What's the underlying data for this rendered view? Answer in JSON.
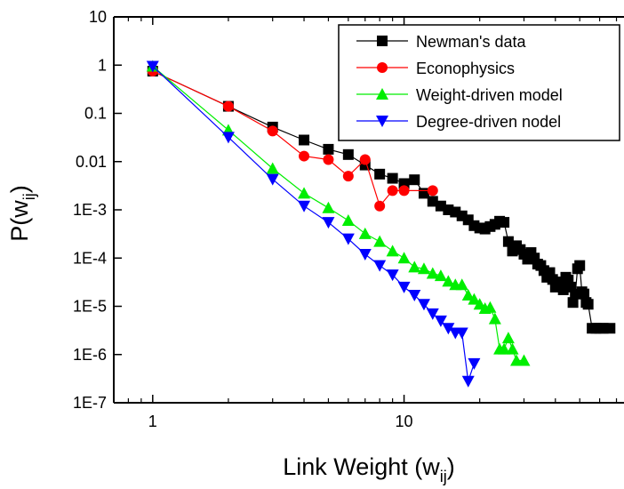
{
  "chart_data": {
    "type": "scatter",
    "x_scale": "log",
    "y_scale": "log",
    "xlim": [
      0.7,
      75
    ],
    "ylim": [
      1e-07,
      10
    ],
    "x_ticks": [
      {
        "value": 1,
        "label": "1"
      },
      {
        "value": 10,
        "label": "10"
      }
    ],
    "y_ticks": [
      {
        "value": 10,
        "label": "10"
      },
      {
        "value": 1,
        "label": "1"
      },
      {
        "value": 0.1,
        "label": "0.1"
      },
      {
        "value": 0.01,
        "label": "0.01"
      },
      {
        "value": 0.001,
        "label": "1E-3"
      },
      {
        "value": 0.0001,
        "label": "1E-4"
      },
      {
        "value": 1e-05,
        "label": "1E-5"
      },
      {
        "value": 1e-06,
        "label": "1E-6"
      },
      {
        "value": 1e-07,
        "label": "1E-7"
      }
    ],
    "xlabel": {
      "main": "Link Weight (w",
      "sub": "ij",
      "close": ")"
    },
    "ylabel": {
      "main": "P(w",
      "sub": "ij",
      "close": ")"
    },
    "legend_position": "top-right",
    "series": [
      {
        "name": "Newman's data",
        "color": "#000000",
        "marker": "square",
        "points": [
          [
            1,
            0.75
          ],
          [
            2,
            0.14
          ],
          [
            3,
            0.052
          ],
          [
            4,
            0.028
          ],
          [
            5,
            0.018
          ],
          [
            6,
            0.014
          ],
          [
            7,
            0.0085
          ],
          [
            8,
            0.0055
          ],
          [
            9,
            0.0045
          ],
          [
            10,
            0.0035
          ],
          [
            11,
            0.0042
          ],
          [
            12,
            0.0022
          ],
          [
            13,
            0.0015
          ],
          [
            14,
            0.0012
          ],
          [
            15,
            0.001
          ],
          [
            16,
            0.0009
          ],
          [
            17,
            0.00075
          ],
          [
            18,
            0.00062
          ],
          [
            19,
            0.00047
          ],
          [
            20,
            0.00042
          ],
          [
            21,
            0.0004
          ],
          [
            22,
            0.00045
          ],
          [
            23,
            0.0005
          ],
          [
            24,
            0.00058
          ],
          [
            25,
            0.00055
          ],
          [
            26,
            0.00022
          ],
          [
            27,
            0.00014
          ],
          [
            28,
            0.00018
          ],
          [
            29,
            0.00015
          ],
          [
            30,
            0.00012
          ],
          [
            31,
            9.5e-05
          ],
          [
            32,
            0.00013
          ],
          [
            33,
            0.0001
          ],
          [
            34,
            7.5e-05
          ],
          [
            35,
            7e-05
          ],
          [
            36,
            5.5e-05
          ],
          [
            37,
            4e-05
          ],
          [
            38,
            5e-05
          ],
          [
            39,
            3.6e-05
          ],
          [
            40,
            2.5e-05
          ],
          [
            41,
            3e-05
          ],
          [
            42,
            3.2e-05
          ],
          [
            43,
            2.2e-05
          ],
          [
            44,
            4e-05
          ],
          [
            45,
            3.5e-05
          ],
          [
            46,
            2.5e-05
          ],
          [
            47,
            1.2e-05
          ],
          [
            48,
            1.8e-05
          ],
          [
            49,
            6e-05
          ],
          [
            50,
            7e-05
          ],
          [
            51,
            2e-05
          ],
          [
            52,
            1.8e-05
          ],
          [
            53,
            1.2e-05
          ],
          [
            54,
            1.1e-05
          ],
          [
            56,
            3.5e-06
          ],
          [
            58,
            3.5e-06
          ],
          [
            60,
            3.5e-06
          ],
          [
            62,
            3.5e-06
          ],
          [
            66,
            3.5e-06
          ]
        ]
      },
      {
        "name": "Econophysics",
        "color": "#ff0000",
        "marker": "circle",
        "points": [
          [
            1,
            0.75
          ],
          [
            2,
            0.14
          ],
          [
            3,
            0.043
          ],
          [
            4,
            0.013
          ],
          [
            5,
            0.011
          ],
          [
            6,
            0.005
          ],
          [
            7,
            0.011
          ],
          [
            8,
            0.0012
          ],
          [
            9,
            0.0025
          ],
          [
            10,
            0.0025
          ],
          [
            13,
            0.0025
          ]
        ]
      },
      {
        "name": "Weight-driven model",
        "color": "#00ee00",
        "marker": "triangle-up",
        "points": [
          [
            1,
            0.95
          ],
          [
            2,
            0.045
          ],
          [
            3,
            0.0072
          ],
          [
            4,
            0.0022
          ],
          [
            5,
            0.0011
          ],
          [
            6,
            0.0006
          ],
          [
            7,
            0.00032
          ],
          [
            8,
            0.00022
          ],
          [
            9,
            0.00014
          ],
          [
            10,
            0.0001
          ],
          [
            11,
            6.5e-05
          ],
          [
            12,
            6e-05
          ],
          [
            13,
            4.8e-05
          ],
          [
            14,
            4.3e-05
          ],
          [
            15,
            3.3e-05
          ],
          [
            16,
            2.8e-05
          ],
          [
            17,
            2.8e-05
          ],
          [
            18,
            1.7e-05
          ],
          [
            19,
            1.4e-05
          ],
          [
            20,
            1.1e-05
          ],
          [
            21,
            9e-06
          ],
          [
            22,
            9.5e-06
          ],
          [
            23,
            5.5e-06
          ],
          [
            24,
            1.3e-06
          ],
          [
            25,
            1.3e-06
          ],
          [
            26,
            2.2e-06
          ],
          [
            27,
            1.3e-06
          ],
          [
            28,
            7.5e-07
          ],
          [
            30,
            7.5e-07
          ]
        ]
      },
      {
        "name": "Degree-driven nodel",
        "color": "#0000ff",
        "marker": "triangle-down",
        "points": [
          [
            1,
            0.95
          ],
          [
            2,
            0.032
          ],
          [
            3,
            0.0043
          ],
          [
            4,
            0.0012
          ],
          [
            5,
            0.00055
          ],
          [
            6,
            0.00025
          ],
          [
            7,
            0.00012
          ],
          [
            8,
            7e-05
          ],
          [
            9,
            4.5e-05
          ],
          [
            10,
            2.5e-05
          ],
          [
            11,
            1.7e-05
          ],
          [
            12,
            1.1e-05
          ],
          [
            13,
            7e-06
          ],
          [
            14,
            5e-06
          ],
          [
            15,
            3.5e-06
          ],
          [
            16,
            2.8e-06
          ],
          [
            17,
            2.8e-06
          ],
          [
            18,
            2.8e-07
          ],
          [
            19,
            6.5e-07
          ]
        ]
      }
    ]
  }
}
